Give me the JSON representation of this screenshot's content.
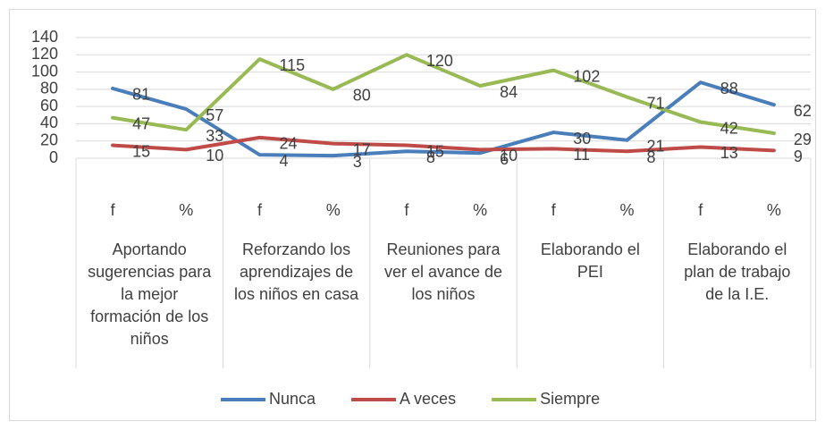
{
  "chart_data": {
    "type": "line",
    "categories": [
      "f",
      "%",
      "f",
      "%",
      "f",
      "%",
      "f",
      "%",
      "f",
      "%"
    ],
    "groups": [
      [
        "Aportando",
        "sugerencias para",
        "la mejor",
        "formación de los",
        "niños"
      ],
      [
        "Reforzando los",
        "aprendizajes de",
        "los niños en casa"
      ],
      [
        "Reuniones para",
        "ver el avance de",
        "los niños"
      ],
      [
        "Elaborando el",
        "PEI"
      ],
      [
        "Elaborando el",
        "plan de trabajo",
        "de la I.E."
      ]
    ],
    "series": [
      {
        "name": "Nunca",
        "color": "#4a7ebb",
        "values": [
          81,
          57,
          4,
          3,
          8,
          6,
          30,
          21,
          88,
          62
        ]
      },
      {
        "name": "A veces",
        "color": "#be4b48",
        "values": [
          15,
          10,
          24,
          17,
          15,
          10,
          11,
          8,
          13,
          9
        ]
      },
      {
        "name": "Siempre",
        "color": "#98b954",
        "values": [
          47,
          33,
          115,
          80,
          120,
          84,
          102,
          71,
          42,
          29
        ]
      }
    ],
    "ylim": [
      0,
      140
    ],
    "yticks": [
      0,
      20,
      40,
      60,
      80,
      100,
      120,
      140
    ],
    "grid": true,
    "legend": "bottom"
  }
}
